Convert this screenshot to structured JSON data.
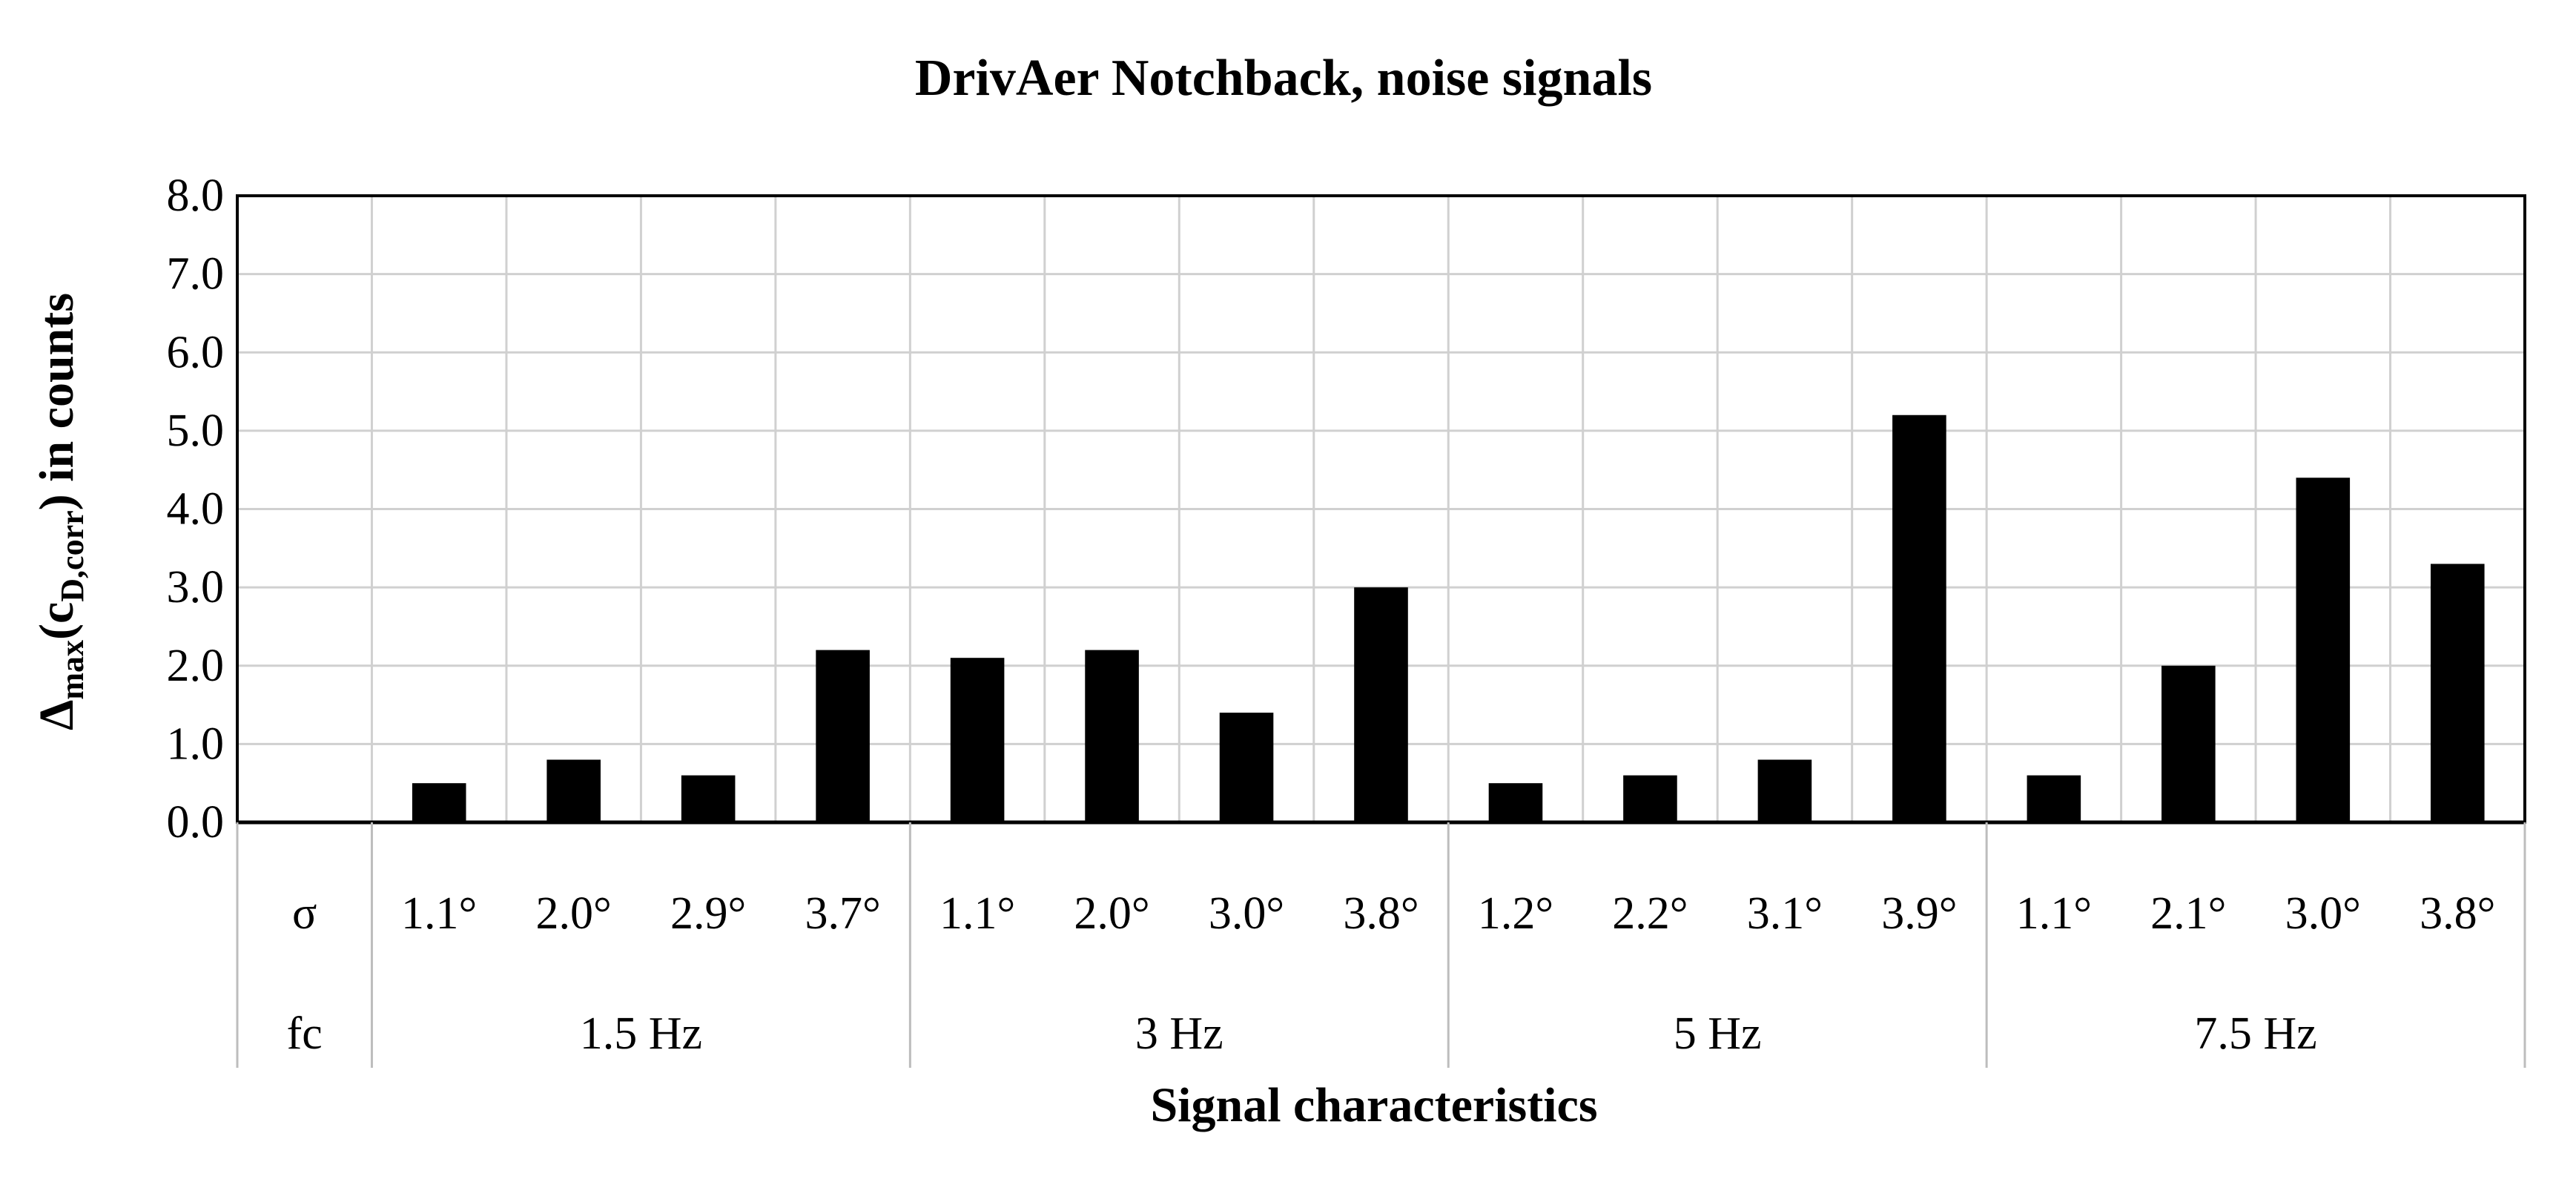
{
  "chart_data": {
    "type": "bar",
    "title": "DrivAer Notchback, noise signals",
    "xlabel": "Signal characteristics",
    "ylabel": {
      "delta": "Δ",
      "max_sub": "max",
      "open": "(c",
      "d_sub": "D,corr",
      "close": ") in counts"
    },
    "ylim": [
      0,
      8
    ],
    "y_ticks": [
      "0.0",
      "1.0",
      "2.0",
      "3.0",
      "4.0",
      "5.0",
      "6.0",
      "7.0",
      "8.0"
    ],
    "grid": true,
    "bar_color": "#000000",
    "row_labels": {
      "sigma": "σ",
      "fc": "fc"
    },
    "groups": [
      {
        "fc": "1.5 Hz",
        "sigmas": [
          "1.1°",
          "2.0°",
          "2.9°",
          "3.7°"
        ],
        "values": [
          0.5,
          0.8,
          0.6,
          2.2
        ]
      },
      {
        "fc": "3 Hz",
        "sigmas": [
          "1.1°",
          "2.0°",
          "3.0°",
          "3.8°"
        ],
        "values": [
          2.1,
          2.2,
          1.4,
          3.0
        ]
      },
      {
        "fc": "5 Hz",
        "sigmas": [
          "1.2°",
          "2.2°",
          "3.1°",
          "3.9°"
        ],
        "values": [
          0.5,
          0.6,
          0.8,
          5.2
        ]
      },
      {
        "fc": "7.5 Hz",
        "sigmas": [
          "1.1°",
          "2.1°",
          "3.0°",
          "3.8°"
        ],
        "values": [
          0.6,
          2.0,
          4.4,
          3.3
        ]
      }
    ]
  }
}
